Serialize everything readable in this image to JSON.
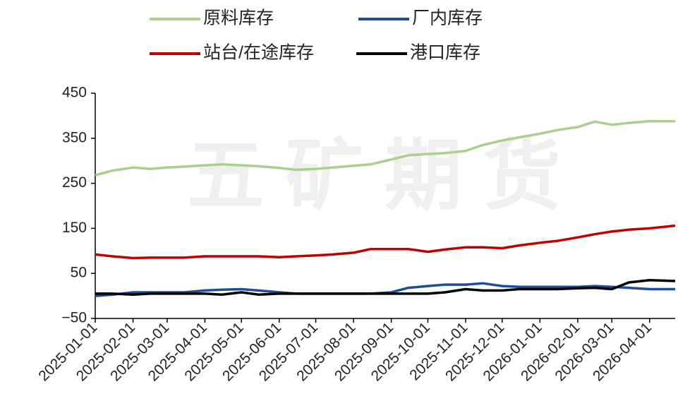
{
  "chart_data": {
    "type": "line",
    "watermark": "五矿期货",
    "x": [
      "2025-01-01",
      "2025-01-15",
      "2025-02-01",
      "2025-02-15",
      "2025-03-01",
      "2025-03-15",
      "2025-04-01",
      "2025-04-15",
      "2025-05-01",
      "2025-05-15",
      "2025-06-01",
      "2025-06-15",
      "2025-07-01",
      "2025-07-15",
      "2025-08-01",
      "2025-08-15",
      "2025-09-01",
      "2025-09-15",
      "2025-10-01",
      "2025-10-15",
      "2025-11-01",
      "2025-11-15",
      "2025-12-01",
      "2025-12-15",
      "2026-01-01",
      "2026-01-15",
      "2026-02-01",
      "2026-02-15",
      "2026-03-01",
      "2026-03-15",
      "2026-04-01",
      "2026-04-22"
    ],
    "series": [
      {
        "name": "原料库存",
        "color": "#a9d18e",
        "values": [
          268,
          278,
          285,
          282,
          285,
          287,
          290,
          292,
          290,
          288,
          284,
          280,
          282,
          285,
          289,
          292,
          303,
          312,
          315,
          317,
          322,
          335,
          345,
          352,
          360,
          368,
          375,
          387,
          380,
          384,
          388,
          388
        ]
      },
      {
        "name": "厂内库存",
        "color": "#1f4e96",
        "values": [
          0,
          3,
          8,
          8,
          8,
          8,
          12,
          14,
          15,
          12,
          8,
          5,
          5,
          5,
          5,
          5,
          8,
          18,
          22,
          25,
          25,
          28,
          22,
          20,
          20,
          20,
          20,
          22,
          20,
          18,
          15,
          15
        ]
      },
      {
        "name": "站台/在途库存",
        "color": "#c00000",
        "values": [
          92,
          88,
          84,
          85,
          85,
          85,
          88,
          88,
          88,
          88,
          86,
          88,
          90,
          92,
          96,
          104,
          104,
          104,
          98,
          103,
          108,
          108,
          106,
          112,
          118,
          122,
          130,
          137,
          143,
          147,
          150,
          156
        ]
      },
      {
        "name": "港口库存",
        "color": "#000000",
        "values": [
          5,
          5,
          3,
          5,
          5,
          5,
          5,
          3,
          8,
          3,
          5,
          5,
          5,
          5,
          5,
          5,
          5,
          5,
          5,
          8,
          15,
          12,
          12,
          15,
          15,
          15,
          17,
          18,
          15,
          30,
          35,
          33
        ]
      }
    ],
    "xlim": [
      "2025-01-01",
      "2026-04-22"
    ],
    "xticks": [
      "2025-01-01",
      "2025-02-01",
      "2025-03-01",
      "2025-04-01",
      "2025-05-01",
      "2025-06-01",
      "2025-07-01",
      "2025-08-01",
      "2025-09-01",
      "2025-10-01",
      "2025-11-01",
      "2025-12-01",
      "2026-01-01",
      "2026-02-01",
      "2026-03-01",
      "2026-04-01"
    ],
    "ylim": [
      -50,
      450
    ],
    "yticks": [
      {
        "value": -50,
        "label": "−50"
      },
      50,
      150,
      250,
      350,
      450
    ]
  }
}
